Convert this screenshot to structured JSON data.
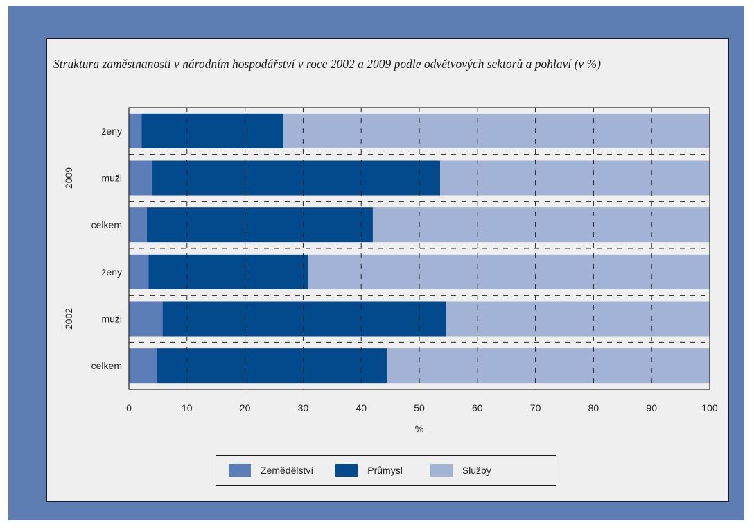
{
  "chart_data": {
    "type": "bar",
    "orientation": "horizontal",
    "stacked": true,
    "title": "Struktura zaměstnanosti v národním hospodářství v roce 2002 a 2009 podle odvětvových sektorů a pohlaví (v %)",
    "xlabel": "%",
    "xlim": [
      0,
      100
    ],
    "xticks": [
      "0",
      "10",
      "20",
      "30",
      "40",
      "50",
      "60",
      "70",
      "80",
      "90",
      "100"
    ],
    "groups": [
      {
        "label": "2009",
        "categories": [
          "ženy",
          "muži",
          "celkem"
        ]
      },
      {
        "label": "2002",
        "categories": [
          "ženy",
          "muži",
          "celkem"
        ]
      }
    ],
    "categories": [
      "ženy",
      "muži",
      "celkem",
      "ženy",
      "muži",
      "celkem"
    ],
    "series": [
      {
        "name": "Zemědělství",
        "color": "#5b7db8",
        "values": [
          2.2,
          4.0,
          3.1,
          3.4,
          5.8,
          4.8
        ]
      },
      {
        "name": "Průmysl",
        "color": "#034a8c",
        "values": [
          24.4,
          49.6,
          38.9,
          27.5,
          48.8,
          39.6
        ]
      },
      {
        "name": "Služby",
        "color": "#a3b3d6",
        "values": [
          73.4,
          46.4,
          58.0,
          69.1,
          45.4,
          55.6
        ]
      }
    ],
    "grid": true,
    "legend_position": "bottom"
  }
}
